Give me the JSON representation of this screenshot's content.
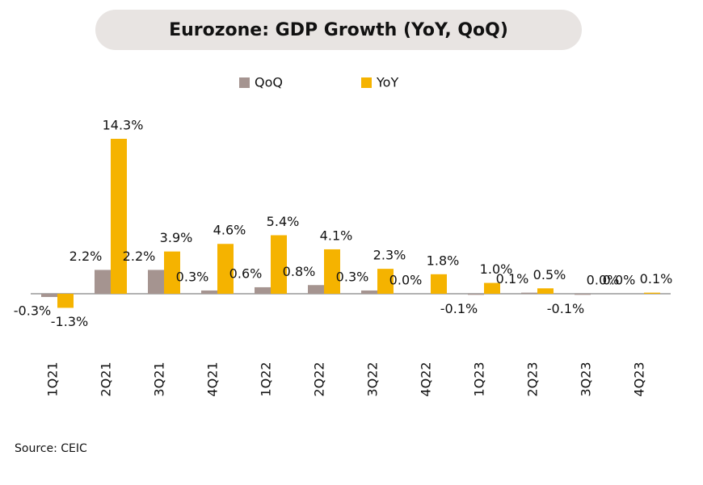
{
  "chart_data": {
    "type": "bar",
    "title": "Eurozone: GDP Growth (YoY, QoQ)",
    "categories": [
      "1Q21",
      "2Q21",
      "3Q21",
      "4Q21",
      "1Q22",
      "2Q22",
      "3Q22",
      "4Q22",
      "1Q23",
      "2Q23",
      "3Q23",
      "4Q23"
    ],
    "series": [
      {
        "name": "QoQ",
        "color": "#a59490",
        "values": [
          -0.3,
          2.2,
          2.2,
          0.3,
          0.6,
          0.8,
          0.3,
          0.0,
          -0.1,
          0.1,
          -0.1,
          0.0
        ],
        "value_labels": [
          "-0.3%",
          "2.2%",
          "2.2%",
          "0.3%",
          "0.6%",
          "0.8%",
          "0.3%",
          "0.0%",
          "-0.1%",
          "0.1%",
          "-0.1%",
          "0.0%"
        ]
      },
      {
        "name": "YoY",
        "color": "#f5b300",
        "values": [
          -1.3,
          14.3,
          3.9,
          4.6,
          5.4,
          4.1,
          2.3,
          1.8,
          1.0,
          0.5,
          0.0,
          0.1
        ],
        "value_labels": [
          "-1.3%",
          "14.3%",
          "3.9%",
          "4.6%",
          "5.4%",
          "4.1%",
          "2.3%",
          "1.8%",
          "1.0%",
          "0.5%",
          "0.0%",
          "0.1%"
        ]
      }
    ],
    "source": "Source: CEIC"
  }
}
